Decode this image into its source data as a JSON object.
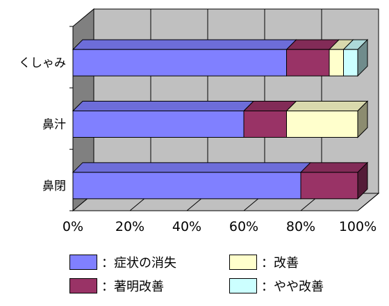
{
  "chart_data": {
    "type": "bar",
    "orientation": "horizontal",
    "stacked": true,
    "percent": true,
    "three_d": true,
    "categories": [
      "くしゃみ",
      "鼻汁",
      "鼻閉"
    ],
    "series": [
      {
        "name": "：症状の消失",
        "color": "#8080ff",
        "values": [
          75,
          60,
          80
        ]
      },
      {
        "name": "：著明改善",
        "color": "#993366",
        "values": [
          15,
          15,
          20
        ]
      },
      {
        "name": "：改善",
        "color": "#ffffcc",
        "values": [
          5,
          25,
          0
        ]
      },
      {
        "name": "：やや改善",
        "color": "#ccffff",
        "values": [
          5,
          0,
          0
        ]
      }
    ],
    "xlim": [
      0,
      100
    ],
    "xticks": [
      "0%",
      "20%",
      "40%",
      "60%",
      "80%",
      "100%"
    ],
    "grid": true,
    "legend_position": "bottom",
    "wall_color": "#c0c0c0",
    "floor_color": "#c0c0c0",
    "side_wall_color": "#808080"
  }
}
